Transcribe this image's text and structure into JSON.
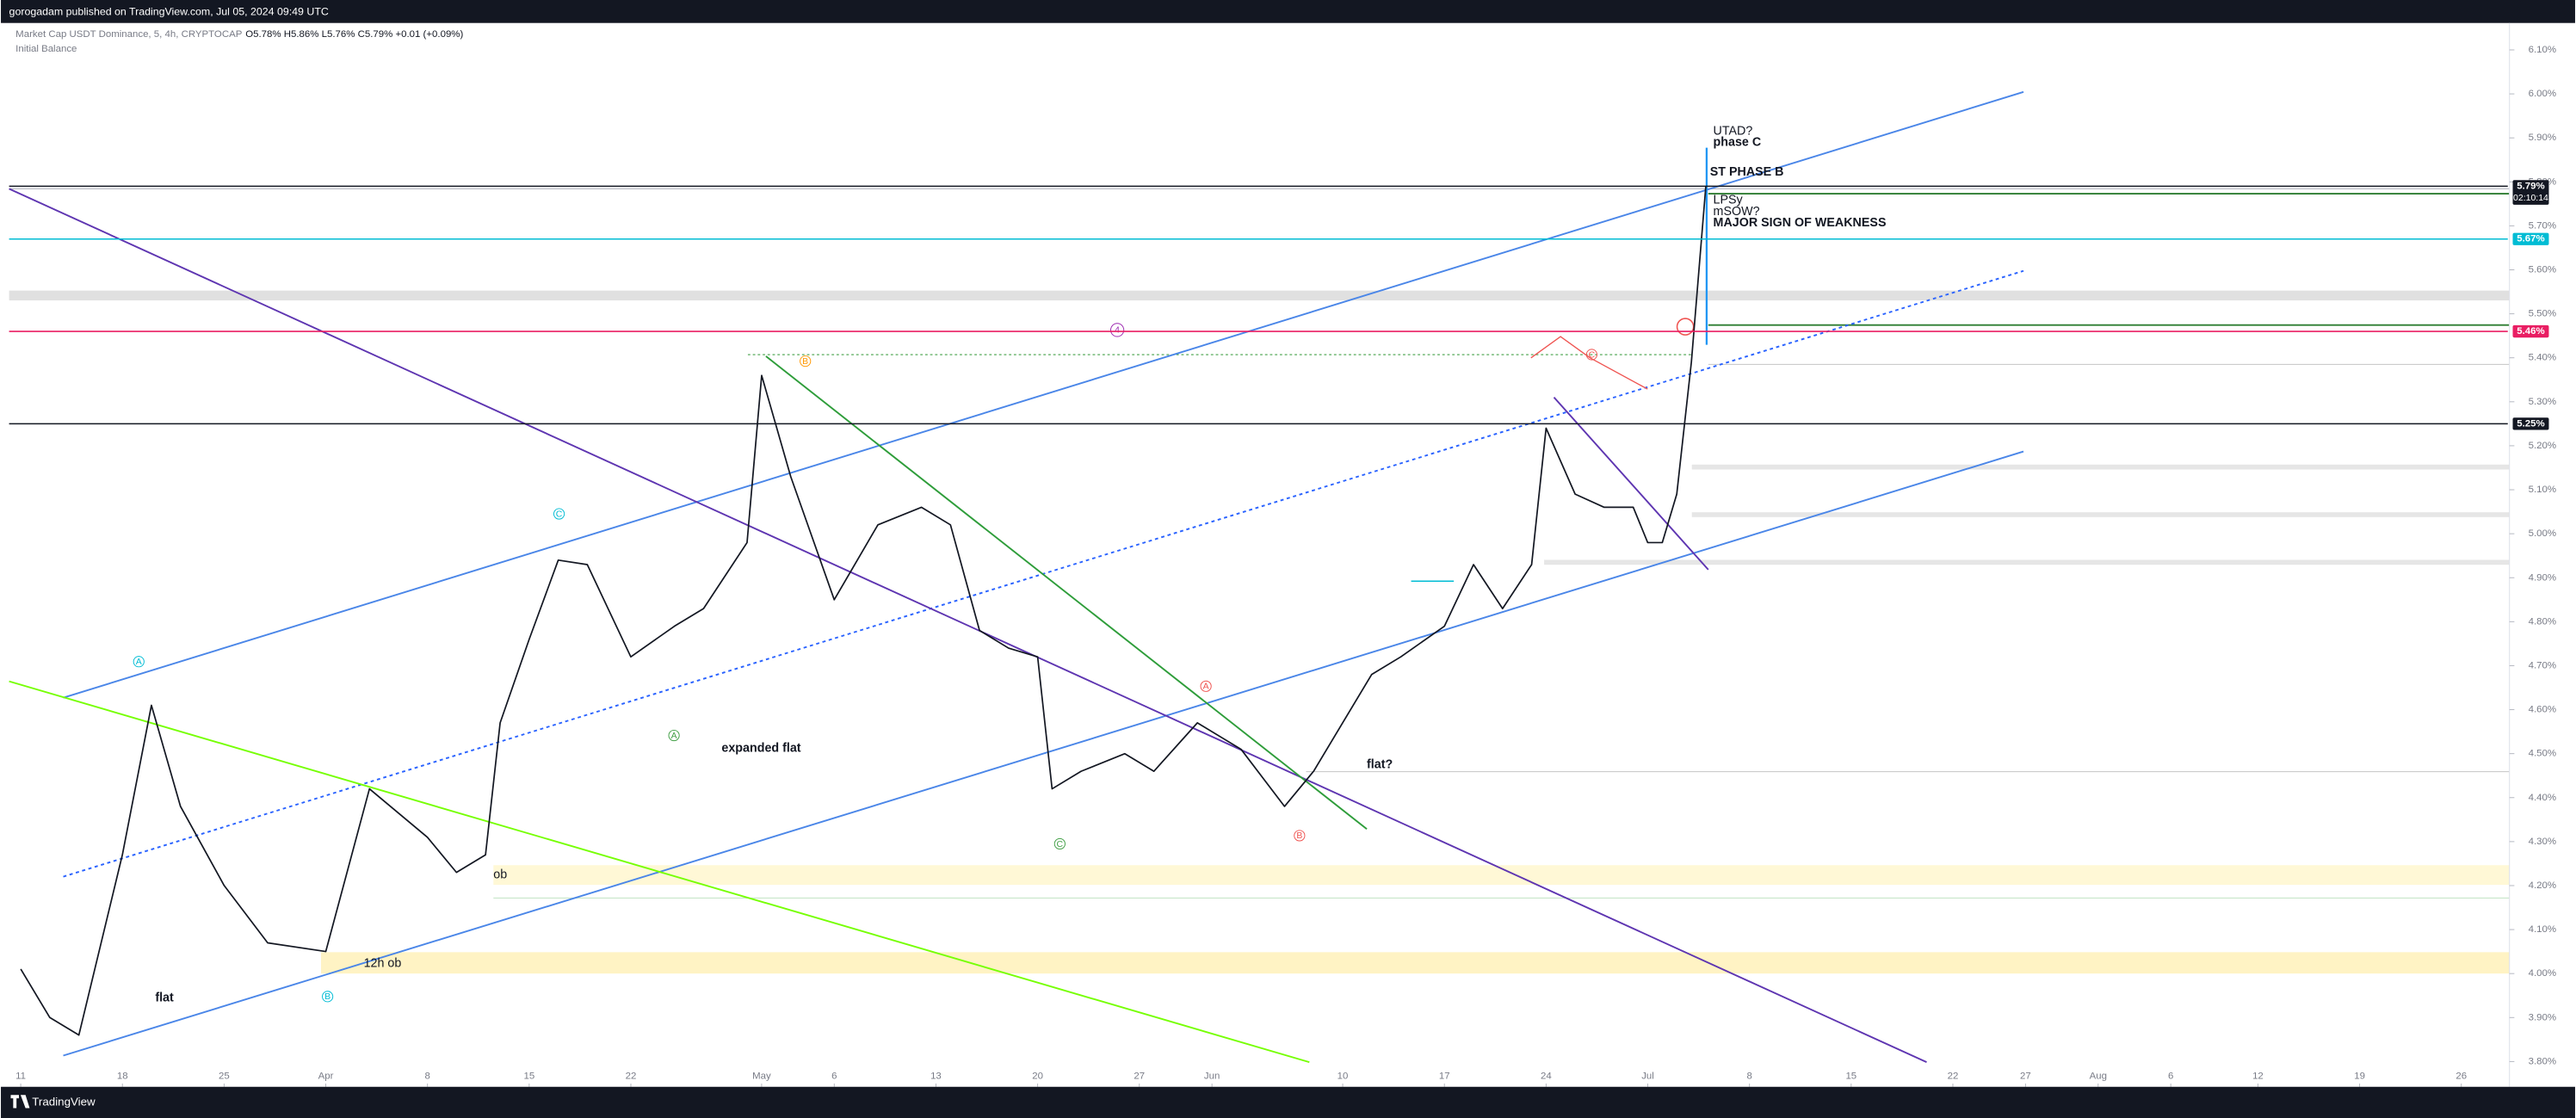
{
  "header": {
    "publisher": "gorogadam published on TradingView.com, Jul 05, 2024 09:49 UTC"
  },
  "chart_data": {
    "type": "line",
    "title": "Market Cap USDT Dominance, 5, 4h, CRYPTOCAP",
    "ohlc": "O5.78% H5.86% L5.76% C5.79% +0.01 (+0.09%)",
    "indicator": "Initial Balance",
    "color": "#131722",
    "x": [
      0,
      2,
      4,
      7,
      9,
      11,
      14,
      17,
      21,
      24,
      28,
      30,
      32,
      33,
      35,
      37,
      39,
      42,
      45,
      47,
      50,
      51,
      53,
      56,
      59,
      62,
      64,
      66,
      68,
      70,
      71,
      73,
      76,
      78,
      81,
      84,
      87,
      89,
      91,
      93,
      95,
      98,
      100,
      102,
      104,
      105,
      107,
      109,
      111,
      112,
      113,
      114,
      115,
      116
    ],
    "values": [
      4.01,
      3.9,
      3.86,
      4.27,
      4.61,
      4.38,
      4.2,
      4.07,
      4.05,
      4.42,
      4.31,
      4.23,
      4.27,
      4.57,
      4.76,
      4.94,
      4.93,
      4.72,
      4.79,
      4.83,
      4.98,
      5.36,
      5.13,
      4.85,
      5.02,
      5.06,
      5.02,
      4.78,
      4.74,
      4.72,
      4.42,
      4.46,
      4.5,
      4.46,
      4.57,
      4.51,
      4.38,
      4.46,
      4.57,
      4.68,
      4.72,
      4.79,
      4.93,
      4.83,
      4.93,
      5.24,
      5.09,
      5.06,
      5.06,
      4.98,
      4.98,
      5.09,
      5.39,
      5.79
    ],
    "xlim": [
      -0.8,
      171.2
    ],
    "xticks": [
      {
        "value": 0,
        "label": "11"
      },
      {
        "value": 7,
        "label": "18"
      },
      {
        "value": 14,
        "label": "25"
      },
      {
        "value": 21,
        "label": "Apr"
      },
      {
        "value": 28,
        "label": "8"
      },
      {
        "value": 35,
        "label": "15"
      },
      {
        "value": 42,
        "label": "22"
      },
      {
        "value": 51,
        "label": "May"
      },
      {
        "value": 56,
        "label": "6"
      },
      {
        "value": 63,
        "label": "13"
      },
      {
        "value": 70,
        "label": "20"
      },
      {
        "value": 77,
        "label": "27"
      },
      {
        "value": 82,
        "label": "Jun"
      },
      {
        "value": 91,
        "label": "10"
      },
      {
        "value": 98,
        "label": "17"
      },
      {
        "value": 105,
        "label": "24"
      },
      {
        "value": 112,
        "label": "Jul"
      },
      {
        "value": 119,
        "label": "8"
      },
      {
        "value": 126,
        "label": "15"
      },
      {
        "value": 133,
        "label": "22"
      },
      {
        "value": 138,
        "label": "27"
      },
      {
        "value": 143,
        "label": "Aug"
      },
      {
        "value": 148,
        "label": "6"
      },
      {
        "value": 154,
        "label": "12"
      },
      {
        "value": 161,
        "label": "19"
      },
      {
        "value": 168,
        "label": "26"
      }
    ],
    "ylim": [
      3.75,
      6.15
    ],
    "yticks": [
      {
        "value": 3.8,
        "label": "3.80%"
      },
      {
        "value": 3.9,
        "label": "3.90%"
      },
      {
        "value": 4.0,
        "label": "4.00%"
      },
      {
        "value": 4.1,
        "label": "4.10%"
      },
      {
        "value": 4.2,
        "label": "4.20%"
      },
      {
        "value": 4.3,
        "label": "4.30%"
      },
      {
        "value": 4.4,
        "label": "4.40%"
      },
      {
        "value": 4.5,
        "label": "4.50%"
      },
      {
        "value": 4.6,
        "label": "4.60%"
      },
      {
        "value": 4.7,
        "label": "4.70%"
      },
      {
        "value": 4.8,
        "label": "4.80%"
      },
      {
        "value": 4.9,
        "label": "4.90%"
      },
      {
        "value": 5.0,
        "label": "5.00%"
      },
      {
        "value": 5.1,
        "label": "5.10%"
      },
      {
        "value": 5.2,
        "label": "5.20%"
      },
      {
        "value": 5.3,
        "label": "5.30%"
      },
      {
        "value": 5.4,
        "label": "5.40%"
      },
      {
        "value": 5.5,
        "label": "5.50%"
      },
      {
        "value": 5.6,
        "label": "5.60%"
      },
      {
        "value": 5.7,
        "label": "5.70%"
      },
      {
        "value": 5.8,
        "label": "5.80%"
      },
      {
        "value": 5.9,
        "label": "5.90%"
      },
      {
        "value": 6.0,
        "label": "6.00%"
      },
      {
        "value": 6.1,
        "label": "6.10%"
      }
    ],
    "price_levels": [
      {
        "value": 5.79,
        "label": "5.79%",
        "countdown": "02:10:14",
        "color": "#131722"
      },
      {
        "value": 5.67,
        "label": "5.67%",
        "color": "#00bcd4"
      },
      {
        "value": 5.46,
        "label": "5.46%",
        "color": "#e91e63"
      },
      {
        "value": 5.25,
        "label": "5.25%",
        "color": "#131722"
      }
    ],
    "annotations": [
      "UTAD?",
      "phase C",
      "ST PHASE B",
      "LPSy",
      "mSOW?",
      "MAJOR SIGN OF WEAKNESS",
      "expanded flat",
      "flat",
      "flat?",
      "12h ob",
      "ob"
    ],
    "wave_labels": [
      "A",
      "B",
      "C",
      "A",
      "B",
      "C",
      "A",
      "B",
      "C",
      "4"
    ]
  },
  "footer": {
    "brand": "TradingView"
  }
}
